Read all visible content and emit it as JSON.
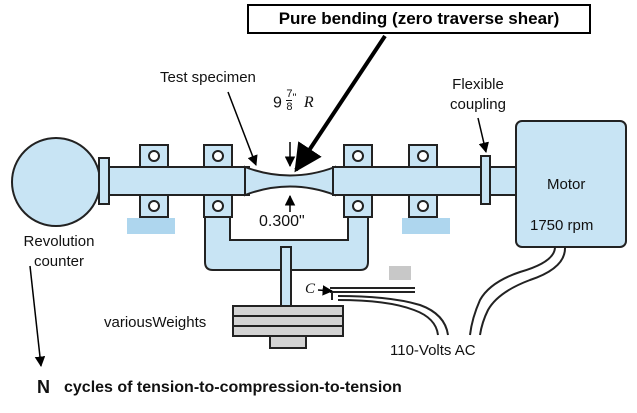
{
  "title": "Pure bending (zero traverse shear)",
  "labels": {
    "specimen": "Test specimen",
    "radius_whole": "9",
    "radius_num": "7",
    "radius_den": "8",
    "radius_inch": "\"",
    "radius_R": "R",
    "diameter": "0.300\"",
    "coupling": "Flexible coupling",
    "motor": "Motor",
    "rpm": "1750 rpm",
    "counter": "Revolution counter",
    "c_label": "C",
    "weights_prefix": "various",
    "weights": "Weights",
    "power": "110-Volts AC",
    "n_symbol": "N",
    "n_caption": "cycles of tension-to-compression-to-tension"
  },
  "colors": {
    "fill": "#c8e4f4",
    "base_block": "#aed6ee",
    "weight_plate": "#d3d3d3",
    "outline": "#222222"
  }
}
